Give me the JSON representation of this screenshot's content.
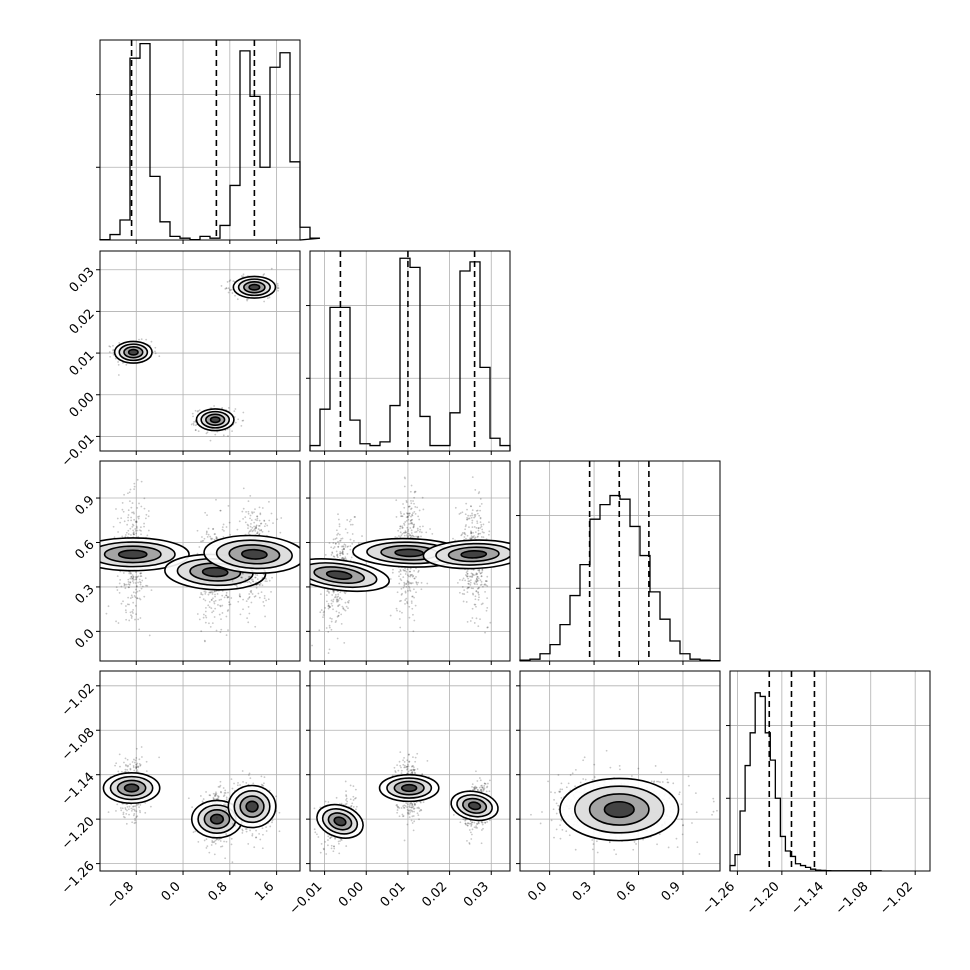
{
  "chart_data": {
    "type": "corner",
    "parameters": [
      {
        "range": [
          -1.42,
          2.0
        ],
        "ticks": [
          -0.8,
          0.0,
          0.8,
          1.6
        ],
        "tick_labels": [
          "−0.8",
          "0.0",
          "0.8",
          "1.6"
        ],
        "hist": {
          "edges_start": -1.42,
          "bin_width": 0.171,
          "counts": [
            0.2,
            3,
            11,
            100,
            108,
            35,
            10,
            2,
            1,
            0.2,
            2,
            1,
            8,
            30,
            104,
            79,
            40,
            95,
            103,
            43,
            7,
            1
          ]
        },
        "quantiles": [
          -0.88,
          0.57,
          1.22
        ]
      },
      {
        "range": [
          -0.0135,
          0.0345
        ],
        "ticks": [
          -0.01,
          0.0,
          0.01,
          0.02,
          0.03
        ],
        "tick_labels": [
          "−0.01",
          "0.00",
          "0.01",
          "0.02",
          "0.03"
        ],
        "hist": {
          "edges_start": -0.0135,
          "bin_width": 0.0024,
          "counts": [
            3,
            23,
            79,
            79,
            17,
            4,
            3,
            5,
            25,
            106,
            101,
            19,
            3,
            3,
            21,
            99,
            104,
            46,
            7,
            3
          ]
        },
        "quantiles": [
          -0.0062,
          0.01,
          0.026
        ]
      },
      {
        "range": [
          -0.2,
          1.15
        ],
        "ticks": [
          0.0,
          0.3,
          0.6,
          0.9
        ],
        "tick_labels": [
          "0.0",
          "0.3",
          "0.6",
          "0.9"
        ],
        "hist": {
          "edges_start": -0.2,
          "bin_width": 0.0675,
          "counts": [
            0.5,
            1,
            4,
            9,
            20,
            36,
            53,
            78,
            86,
            91,
            89,
            74,
            58,
            38,
            23,
            11,
            4,
            1,
            0.5,
            0.2
          ]
        },
        "quantiles": [
          0.27,
          0.47,
          0.67
        ]
      },
      {
        "range": [
          -1.27,
          -1.0
        ],
        "ticks": [
          -1.26,
          -1.2,
          -1.14,
          -1.08,
          -1.02
        ],
        "tick_labels": [
          "−1.26",
          "−1.20",
          "−1.14",
          "−1.08",
          "−1.02"
        ],
        "hist": {
          "edges_start": -1.27,
          "bin_width": 0.0068,
          "counts": [
            3,
            9,
            33,
            58,
            76,
            98,
            96,
            76,
            61,
            40,
            19,
            11,
            8,
            4,
            3,
            2,
            1,
            0.5,
            0.3,
            0.2,
            0.1,
            0.1,
            0.1,
            0.1,
            0.1,
            0.1,
            0.1,
            0.1,
            0.1,
            0.1
          ]
        },
        "quantiles": [
          -1.217,
          -1.187,
          -1.156
        ]
      }
    ],
    "hist_ylim": [
      0,
      110
    ],
    "hist_yticks": [
      40,
      80
    ],
    "clusters_2d": {
      "1_0": [
        {
          "cx": -0.85,
          "cy": 0.0102,
          "sx": 0.16,
          "sy": 0.0013,
          "rho": 0.0
        },
        {
          "cx": 0.55,
          "cy": -0.006,
          "sx": 0.16,
          "sy": 0.0013,
          "rho": 0.0
        },
        {
          "cx": 1.22,
          "cy": 0.0258,
          "sx": 0.18,
          "sy": 0.0013,
          "rho": 0.0
        }
      ],
      "2_0": [
        {
          "cx": -0.86,
          "cy": 0.52,
          "sx": 0.14,
          "sy": 0.19,
          "rho": 0.0
        },
        {
          "cx": 0.55,
          "cy": 0.4,
          "sx": 0.15,
          "sy": 0.17,
          "rho": 0.1
        },
        {
          "cx": 1.22,
          "cy": 0.52,
          "sx": 0.16,
          "sy": 0.17,
          "rho": 0.1
        }
      ],
      "3_0": [
        {
          "cx": -0.88,
          "cy": -1.158,
          "sx": 0.13,
          "sy": 0.019,
          "rho": 0.0
        },
        {
          "cx": 0.58,
          "cy": -1.2,
          "sx": 0.16,
          "sy": 0.017,
          "rho": 0.0
        },
        {
          "cx": 1.18,
          "cy": -1.183,
          "sx": 0.18,
          "sy": 0.016,
          "rho": 0.0
        }
      ],
      "2_1": [
        {
          "cx": -0.0065,
          "cy": 0.38,
          "sx": 0.0018,
          "sy": 0.17,
          "rho": 0.4
        },
        {
          "cx": 0.0103,
          "cy": 0.53,
          "sx": 0.0017,
          "sy": 0.19,
          "rho": 0.1
        },
        {
          "cx": 0.0258,
          "cy": 0.52,
          "sx": 0.0017,
          "sy": 0.17,
          "rho": -0.1
        }
      ],
      "3_1": [
        {
          "cx": -0.0063,
          "cy": -1.203,
          "sx": 0.0019,
          "sy": 0.016,
          "rho": 0.3
        },
        {
          "cx": 0.0103,
          "cy": -1.158,
          "sx": 0.0016,
          "sy": 0.02,
          "rho": 0.0
        },
        {
          "cx": 0.026,
          "cy": -1.182,
          "sx": 0.0017,
          "sy": 0.016,
          "rho": 0.2
        }
      ],
      "3_2": [
        {
          "cx": 0.47,
          "cy": -1.187,
          "sx": 0.2,
          "sy": 0.021,
          "rho": 0.0
        }
      ]
    }
  }
}
